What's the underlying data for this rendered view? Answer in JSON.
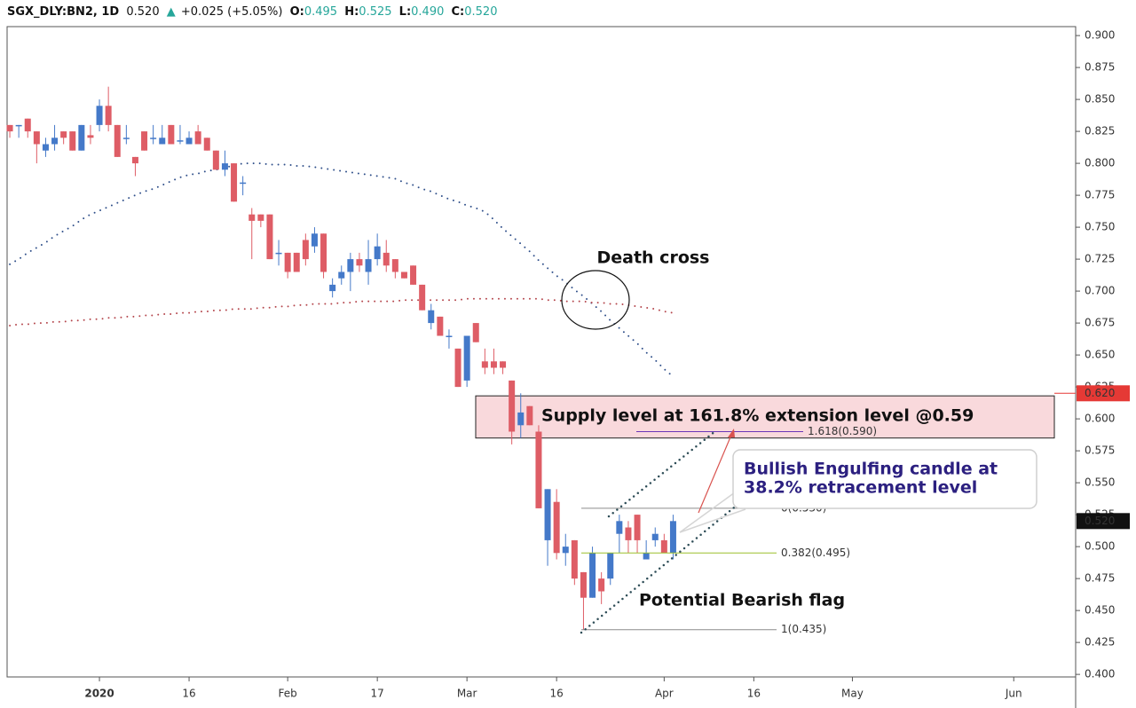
{
  "header": {
    "symbol": "SGX_DLY:BN2, 1D",
    "last": "0.520",
    "arrow": "▲",
    "change": "+0.025 (+5.05%)",
    "ohlc": [
      {
        "label": "O:",
        "value": "0.495"
      },
      {
        "label": "H:",
        "value": "0.525"
      },
      {
        "label": "L:",
        "value": "0.490"
      },
      {
        "label": "C:",
        "value": "0.520"
      }
    ]
  },
  "chart_data": {
    "type": "candlestick",
    "categories": [
      null,
      null,
      null,
      null,
      null,
      null,
      null,
      null,
      null,
      null,
      "2020",
      null,
      null,
      null,
      null,
      null,
      null,
      null,
      null,
      null,
      "16",
      null,
      null,
      null,
      null,
      null,
      null,
      null,
      null,
      null,
      null,
      "Feb",
      null,
      null,
      null,
      null,
      null,
      null,
      null,
      null,
      null,
      "17",
      null,
      null,
      null,
      null,
      null,
      null,
      null,
      null,
      null,
      "Mar",
      null,
      null,
      null,
      null,
      null,
      null,
      null,
      null,
      null,
      "16",
      null,
      null,
      null,
      null,
      null,
      null,
      null,
      null,
      null,
      null,
      null,
      "Apr",
      null,
      null,
      null,
      null,
      null,
      null,
      null,
      null,
      null,
      "16",
      null,
      null,
      null,
      null,
      null,
      null,
      null,
      null,
      null,
      null,
      "May",
      null,
      null,
      null,
      null,
      null,
      null,
      null,
      null,
      null,
      null,
      null,
      null,
      null,
      null,
      null,
      null,
      null,
      "Jun",
      null,
      null,
      null,
      null,
      null,
      null
    ],
    "open": [
      0.83,
      0.83,
      0.835,
      0.825,
      0.81,
      0.815,
      0.825,
      0.825,
      0.81,
      0.822,
      0.83,
      0.845,
      0.83,
      0.82,
      0.805,
      0.825,
      0.82,
      0.815,
      0.83,
      0.818,
      0.815,
      0.825,
      0.82,
      0.81,
      0.795,
      0.8,
      0.785,
      0.76,
      0.76,
      0.76,
      0.73,
      0.73,
      0.73,
      0.74,
      0.735,
      0.745,
      0.7,
      0.71,
      0.715,
      0.725,
      0.715,
      0.725,
      0.73,
      0.725,
      0.715,
      0.72,
      0.705,
      0.675,
      0.68,
      0.665,
      0.655,
      0.63,
      0.675,
      0.645,
      0.645,
      0.645,
      0.63,
      0.595,
      0.61,
      0.59,
      0.505,
      0.535,
      0.495,
      0.505,
      0.48,
      0.46,
      0.475,
      0.475,
      0.51,
      0.515,
      0.525,
      0.49,
      0.505,
      0.505,
      0.495,
      null,
      null,
      null,
      null,
      null,
      null,
      null,
      null,
      null,
      null,
      null,
      null,
      null,
      null,
      null,
      null,
      null,
      null,
      null,
      null,
      null,
      null,
      null,
      null,
      null,
      null,
      null,
      null,
      null,
      null,
      null,
      null,
      null,
      null,
      null,
      null,
      null,
      null,
      null,
      null,
      null,
      null,
      null,
      null
    ],
    "high": [
      0.83,
      0.83,
      0.835,
      0.825,
      0.82,
      0.83,
      0.825,
      0.825,
      0.83,
      0.83,
      0.85,
      0.86,
      0.83,
      0.83,
      0.805,
      0.825,
      0.83,
      0.83,
      0.83,
      0.83,
      0.825,
      0.83,
      0.82,
      0.81,
      0.81,
      0.8,
      0.79,
      0.765,
      0.76,
      0.76,
      0.74,
      0.73,
      0.73,
      0.745,
      0.75,
      0.745,
      0.71,
      0.72,
      0.73,
      0.73,
      0.74,
      0.745,
      0.74,
      0.725,
      0.715,
      0.72,
      0.705,
      0.69,
      0.68,
      0.67,
      0.655,
      0.665,
      0.675,
      0.655,
      0.655,
      0.645,
      0.63,
      0.62,
      0.61,
      0.595,
      0.545,
      0.545,
      0.51,
      0.505,
      0.48,
      0.5,
      0.48,
      0.495,
      0.525,
      0.52,
      0.525,
      0.505,
      0.515,
      0.51,
      0.525,
      null,
      null,
      null,
      null,
      null,
      null,
      null,
      null,
      null,
      null,
      null,
      null,
      null,
      null,
      null,
      null,
      null,
      null,
      null,
      null,
      null,
      null,
      null,
      null,
      null,
      null,
      null,
      null,
      null,
      null,
      null,
      null,
      null,
      null,
      null,
      null,
      null,
      null,
      null,
      null,
      null,
      null,
      null,
      null
    ],
    "low": [
      0.82,
      0.82,
      0.82,
      0.8,
      0.805,
      0.81,
      0.815,
      0.81,
      0.81,
      0.815,
      0.825,
      0.825,
      0.805,
      0.815,
      0.79,
      0.81,
      0.815,
      0.815,
      0.815,
      0.815,
      0.815,
      0.815,
      0.81,
      0.795,
      0.79,
      0.77,
      0.775,
      0.725,
      0.75,
      0.725,
      0.72,
      0.71,
      0.715,
      0.72,
      0.73,
      0.71,
      0.695,
      0.705,
      0.7,
      0.715,
      0.705,
      0.72,
      0.715,
      0.71,
      0.71,
      0.705,
      0.685,
      0.67,
      0.665,
      0.655,
      0.625,
      0.625,
      0.66,
      0.635,
      0.635,
      0.635,
      0.58,
      0.585,
      0.595,
      0.53,
      0.485,
      0.49,
      0.485,
      0.47,
      0.435,
      0.46,
      0.455,
      0.47,
      0.495,
      0.495,
      0.495,
      0.49,
      0.5,
      0.495,
      0.49,
      null,
      null,
      null,
      null,
      null,
      null,
      null,
      null,
      null,
      null,
      null,
      null,
      null,
      null,
      null,
      null,
      null,
      null,
      null,
      null,
      null,
      null,
      null,
      null,
      null,
      null,
      null,
      null,
      null,
      null,
      null,
      null,
      null,
      null,
      null,
      null,
      null,
      null,
      null,
      null,
      null,
      null,
      null,
      null
    ],
    "close": [
      0.825,
      0.83,
      0.825,
      0.815,
      0.815,
      0.82,
      0.82,
      0.81,
      0.83,
      0.82,
      0.845,
      0.83,
      0.805,
      0.82,
      0.8,
      0.81,
      0.82,
      0.82,
      0.815,
      0.818,
      0.82,
      0.815,
      0.81,
      0.795,
      0.8,
      0.77,
      0.785,
      0.755,
      0.755,
      0.725,
      0.73,
      0.715,
      0.715,
      0.725,
      0.745,
      0.715,
      0.705,
      0.715,
      0.725,
      0.72,
      0.725,
      0.735,
      0.72,
      0.715,
      0.71,
      0.705,
      0.685,
      0.685,
      0.665,
      0.665,
      0.625,
      0.665,
      0.66,
      0.64,
      0.64,
      0.64,
      0.59,
      0.605,
      0.595,
      0.53,
      0.545,
      0.495,
      0.5,
      0.475,
      0.46,
      0.495,
      0.465,
      0.495,
      0.52,
      0.505,
      0.505,
      0.495,
      0.51,
      0.495,
      0.52,
      null,
      null,
      null,
      null,
      null,
      null,
      null,
      null,
      null,
      null,
      null,
      null,
      null,
      null,
      null,
      null,
      null,
      null,
      null,
      null,
      null,
      null,
      null,
      null,
      null,
      null,
      null,
      null,
      null,
      null,
      null,
      null,
      null,
      null,
      null,
      null,
      null,
      null,
      null,
      null,
      null,
      null,
      null,
      null
    ],
    "up_color": "#4479c9",
    "down_color": "#de5d66",
    "series": [
      {
        "color": "#2f4f8a",
        "values": [
          0.721,
          0.725,
          0.73,
          0.734,
          0.738,
          0.743,
          0.747,
          0.751,
          0.756,
          0.76,
          0.763,
          0.766,
          0.769,
          0.772,
          0.775,
          0.778,
          0.78,
          0.783,
          0.786,
          0.789,
          0.791,
          0.792,
          0.794,
          0.795,
          0.797,
          0.798,
          0.8,
          0.8,
          0.8,
          0.799,
          0.799,
          0.799,
          0.798,
          0.798,
          0.797,
          0.796,
          0.795,
          0.794,
          0.793,
          0.792,
          0.791,
          0.79,
          0.789,
          0.788,
          0.785,
          0.783,
          0.78,
          0.778,
          0.775,
          0.772,
          0.77,
          0.767,
          0.765,
          0.762,
          0.756,
          0.749,
          0.743,
          0.737,
          0.731,
          0.724,
          0.718,
          0.712,
          0.707,
          0.701,
          0.696,
          0.69,
          0.684,
          0.677,
          0.671,
          0.665,
          0.659,
          0.652,
          0.646,
          0.639,
          0.633,
          null,
          null,
          null,
          null,
          null,
          null,
          null,
          null,
          null,
          null,
          null,
          null,
          null,
          null,
          null,
          null,
          null,
          null,
          null,
          null,
          null,
          null,
          null,
          null,
          null,
          null,
          null,
          null,
          null,
          null,
          null,
          null,
          null,
          null,
          null,
          null,
          null,
          null,
          null,
          null,
          null,
          null,
          null,
          null
        ]
      },
      {
        "color": "#b5474d",
        "values": [
          0.673,
          0.674,
          0.674,
          0.675,
          0.675,
          0.676,
          0.676,
          0.677,
          0.677,
          0.678,
          0.678,
          0.679,
          0.679,
          0.68,
          0.68,
          0.681,
          0.681,
          0.682,
          0.682,
          0.683,
          0.683,
          0.684,
          0.684,
          0.685,
          0.685,
          0.686,
          0.686,
          0.686,
          0.687,
          0.687,
          0.688,
          0.688,
          0.689,
          0.689,
          0.69,
          0.69,
          0.69,
          0.691,
          0.691,
          0.692,
          0.692,
          0.692,
          0.692,
          0.692,
          0.693,
          0.693,
          0.693,
          0.693,
          0.693,
          0.693,
          0.693,
          0.694,
          0.694,
          0.694,
          0.694,
          0.694,
          0.694,
          0.694,
          0.694,
          0.694,
          0.693,
          0.693,
          0.692,
          0.692,
          0.692,
          0.691,
          0.691,
          0.69,
          0.69,
          0.689,
          0.688,
          0.687,
          0.686,
          0.684,
          0.683,
          null,
          null,
          null,
          null,
          null,
          null,
          null,
          null,
          null,
          null,
          null,
          null,
          null,
          null,
          null,
          null,
          null,
          null,
          null,
          null,
          null,
          null,
          null,
          null,
          null,
          null,
          null,
          null,
          null,
          null,
          null,
          null,
          null,
          null,
          null,
          null,
          null,
          null,
          null,
          null,
          null,
          null,
          null,
          null
        ]
      }
    ],
    "ylim": [
      0.398,
      0.907
    ],
    "yticks": [
      {
        "value": 0.4,
        "label": "0.400"
      },
      {
        "value": 0.425,
        "label": "0.425"
      },
      {
        "value": 0.45,
        "label": "0.450"
      },
      {
        "value": 0.475,
        "label": "0.475"
      },
      {
        "value": 0.5,
        "label": "0.500"
      },
      {
        "value": 0.525,
        "label": "0.525"
      },
      {
        "value": 0.55,
        "label": "0.550"
      },
      {
        "value": 0.575,
        "label": "0.575"
      },
      {
        "value": 0.6,
        "label": "0.600"
      },
      {
        "value": 0.625,
        "label": "0.625"
      },
      {
        "value": 0.65,
        "label": "0.650"
      },
      {
        "value": 0.675,
        "label": "0.675"
      },
      {
        "value": 0.7,
        "label": "0.700"
      },
      {
        "value": 0.725,
        "label": "0.725"
      },
      {
        "value": 0.75,
        "label": "0.750"
      },
      {
        "value": 0.775,
        "label": "0.775"
      },
      {
        "value": 0.8,
        "label": "0.800"
      },
      {
        "value": 0.825,
        "label": "0.825"
      },
      {
        "value": 0.85,
        "label": "0.850"
      },
      {
        "value": 0.875,
        "label": "0.875"
      },
      {
        "value": 0.9,
        "label": "0.900"
      }
    ],
    "grid": false,
    "price_markers": [
      {
        "value": 0.62,
        "label": "0.620",
        "color": "#e53935"
      },
      {
        "value": 0.52,
        "label": "0.520",
        "color": "#111111"
      }
    ],
    "supply_zone": {
      "range": [
        0.585,
        0.618
      ],
      "label": "Supply level at 161.8% extension level @0.59"
    },
    "fib_levels": [
      {
        "value": 0.59,
        "label": "1.618(0.590)",
        "color": "#6a35b8"
      },
      {
        "value": 0.53,
        "label": "0(0.530)",
        "color": "#8c8c8c"
      },
      {
        "value": 0.495,
        "label": "0.382(0.495)",
        "color": "#9bbf2a"
      },
      {
        "value": 0.435,
        "label": "1(0.435)",
        "color": "#8c8c8c"
      }
    ],
    "annotations": [
      "Death cross",
      "Potential Bearish flag"
    ],
    "callout": [
      "Bullish Engulfing candle at",
      "38.2% retracement level"
    ]
  }
}
